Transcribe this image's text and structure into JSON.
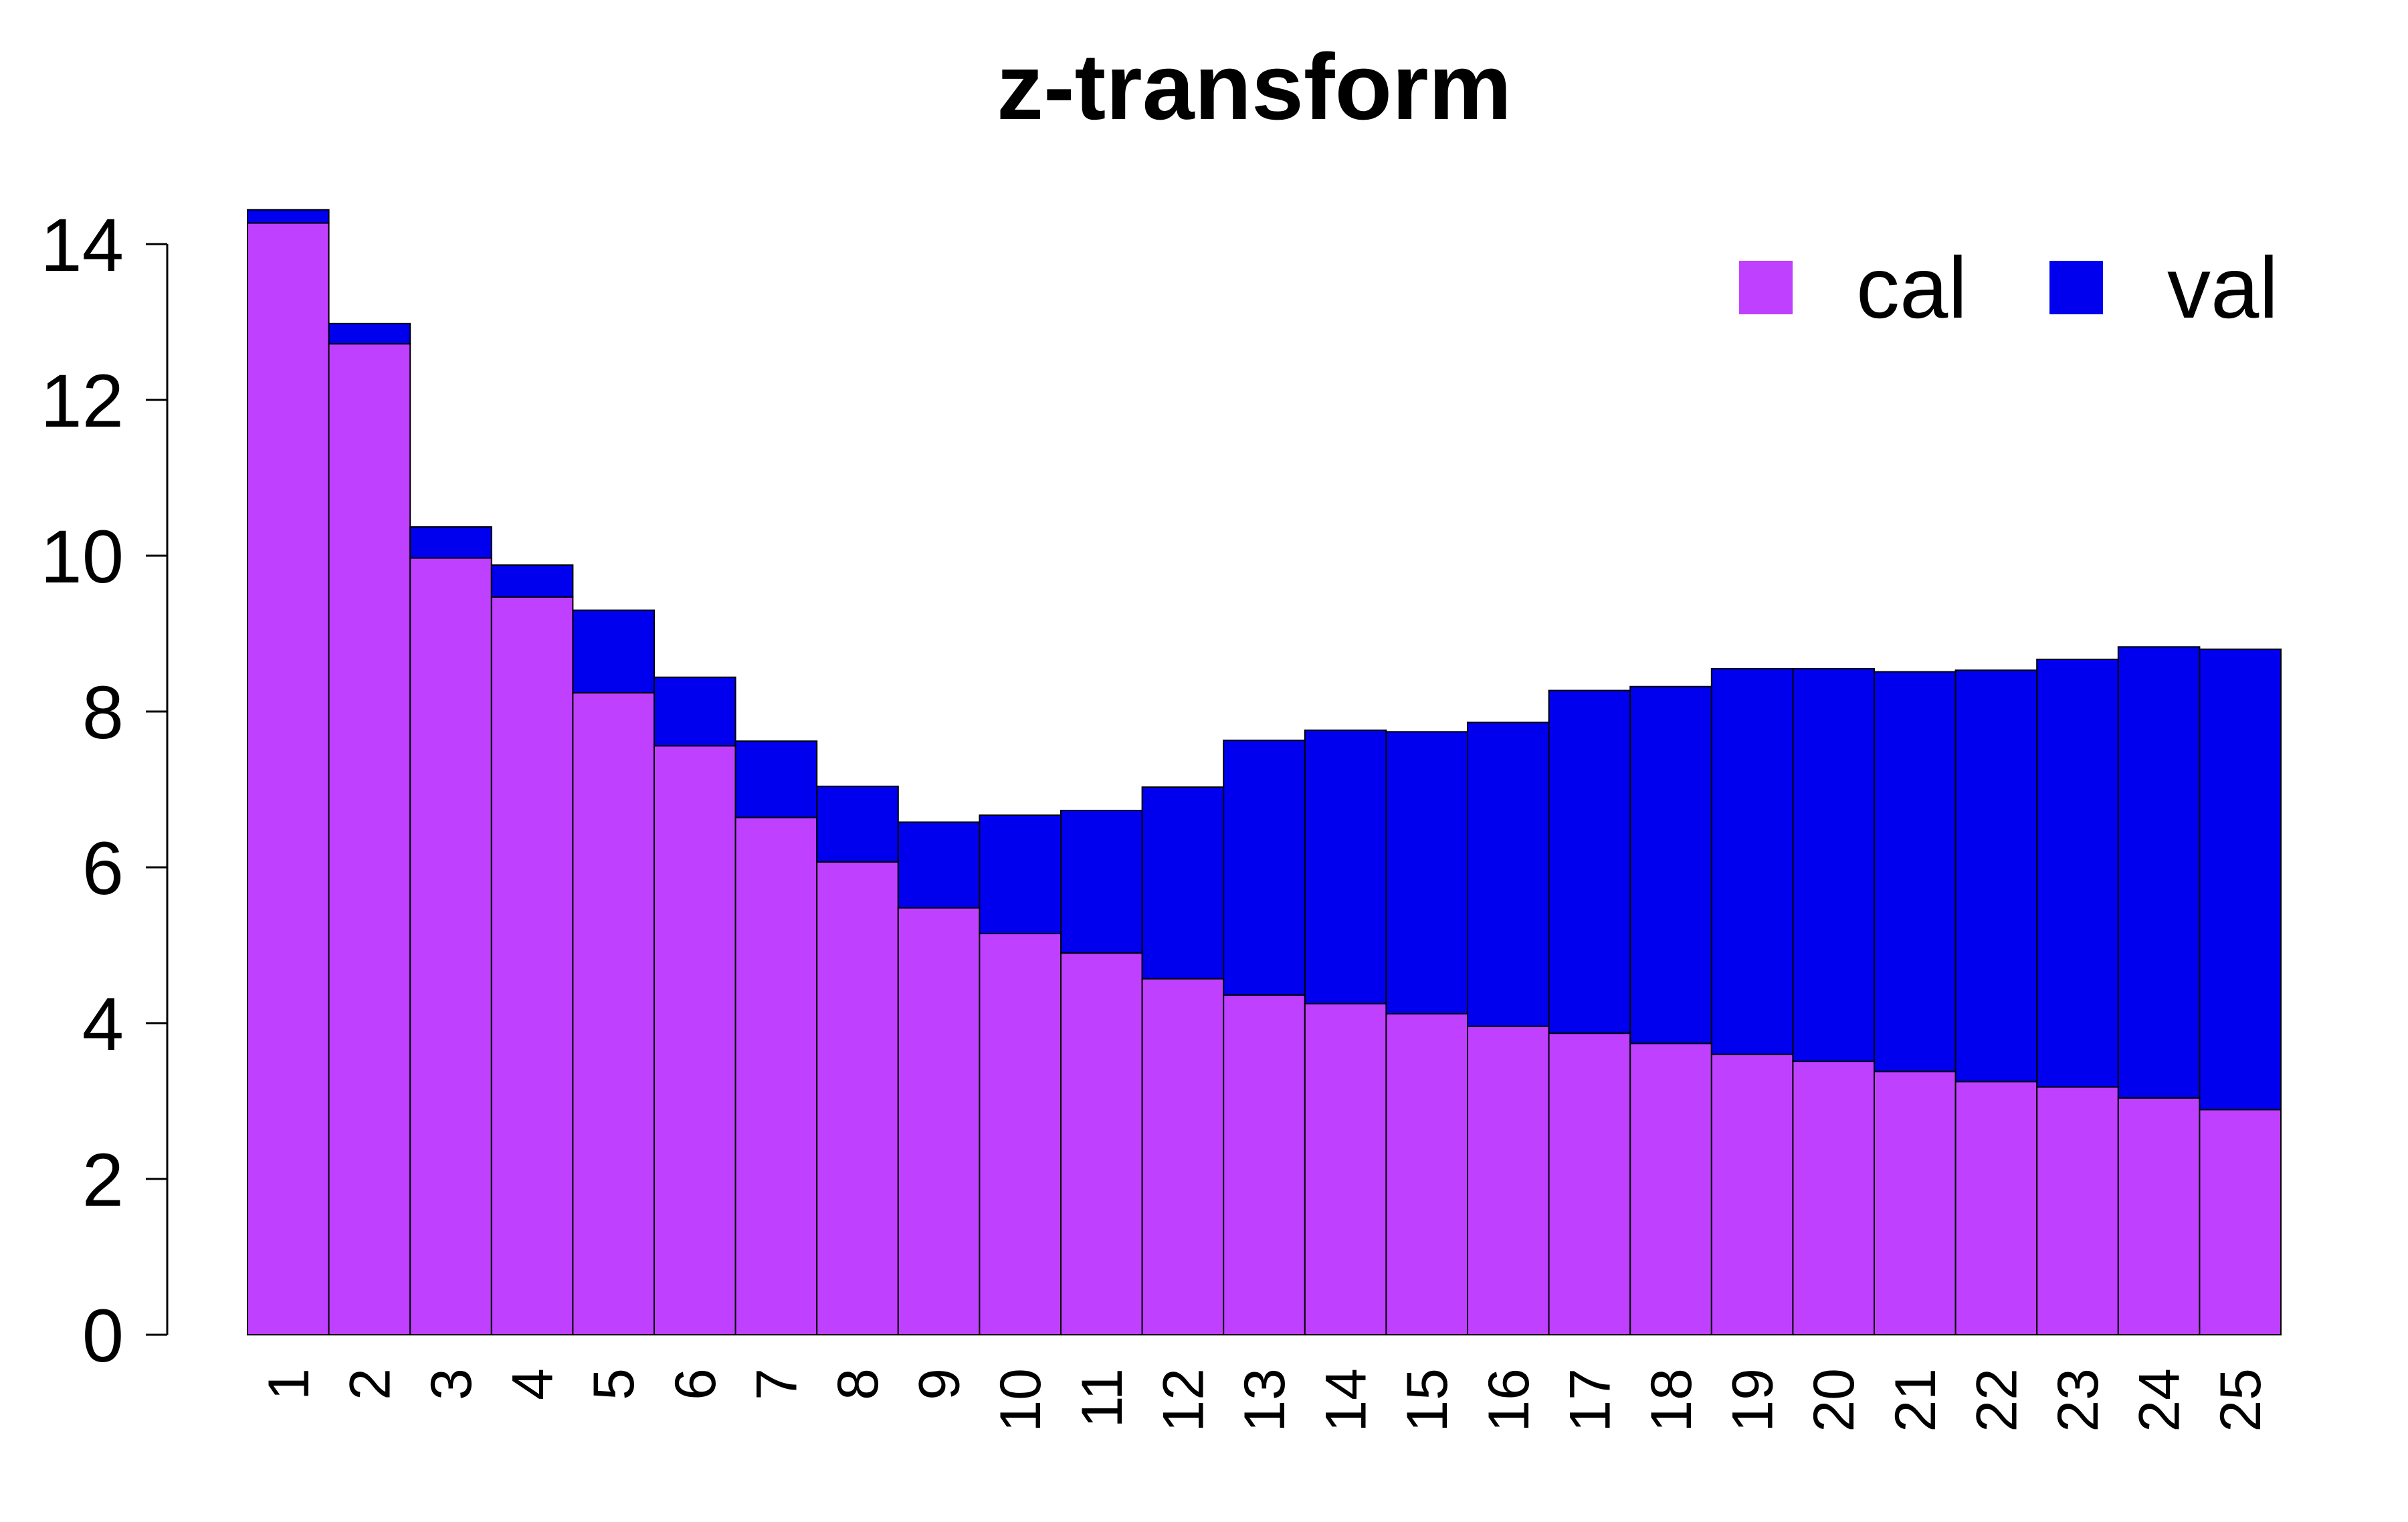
{
  "chart_data": {
    "type": "bar",
    "stacked": true,
    "title": "z-transform",
    "xlabel": "",
    "ylabel": "",
    "ylim": [
      0,
      14.45
    ],
    "yticks": [
      0,
      2,
      4,
      6,
      8,
      10,
      12,
      14
    ],
    "grid": false,
    "legend_position": "top-right",
    "categories": [
      "1",
      "2",
      "3",
      "4",
      "5",
      "6",
      "7",
      "8",
      "9",
      "10",
      "11",
      "12",
      "13",
      "14",
      "15",
      "16",
      "17",
      "18",
      "19",
      "20",
      "21",
      "22",
      "23",
      "24",
      "25"
    ],
    "series": [
      {
        "name": "cal",
        "color": "#bf40ff",
        "values": [
          14.27,
          12.72,
          9.97,
          9.47,
          8.24,
          7.56,
          6.64,
          6.07,
          5.48,
          5.15,
          4.9,
          4.57,
          4.36,
          4.25,
          4.12,
          3.96,
          3.87,
          3.74,
          3.6,
          3.51,
          3.38,
          3.25,
          3.18,
          3.04,
          2.89
        ]
      },
      {
        "name": "val",
        "color": "#0000ee",
        "values": [
          0.17,
          0.26,
          0.4,
          0.41,
          1.06,
          0.88,
          0.98,
          0.97,
          1.1,
          1.52,
          1.83,
          2.46,
          3.27,
          3.51,
          3.62,
          3.9,
          4.4,
          4.58,
          4.95,
          5.04,
          5.13,
          5.28,
          5.49,
          5.79,
          5.91
        ]
      }
    ]
  }
}
